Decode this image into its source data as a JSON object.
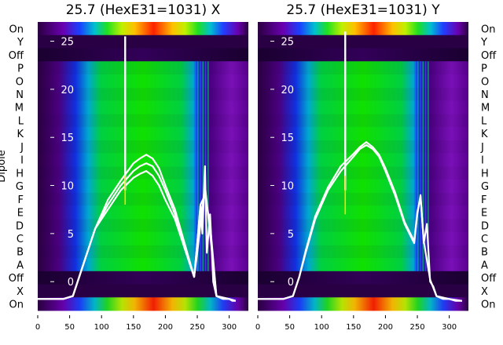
{
  "chart_data": [
    {
      "type": "heatmap",
      "title": "25.7 (HexE31=1031) X",
      "ylabel": "Dipole",
      "xlim": [
        0,
        330
      ],
      "ylim": [
        -3,
        27
      ],
      "x_ticks": [
        0,
        50,
        100,
        150,
        200,
        250,
        300
      ],
      "y_ticks": [
        0,
        5,
        10,
        15,
        20,
        25
      ],
      "row_labels": [
        "On",
        "Y",
        "Off",
        "P",
        "O",
        "N",
        "M",
        "L",
        "K",
        "J",
        "I",
        "H",
        "G",
        "F",
        "E",
        "D",
        "C",
        "B",
        "A",
        "Off",
        "X",
        "On"
      ],
      "series": [
        {
          "x": [
            0,
            20,
            40,
            55,
            65,
            75,
            90,
            110,
            130,
            150,
            160,
            170,
            180,
            190,
            200,
            215,
            230,
            245,
            250,
            255,
            258,
            262,
            265,
            270,
            275,
            280,
            290,
            300,
            305,
            310
          ],
          "y": [
            -1.8,
            -1.8,
            -1.8,
            -1.5,
            0.5,
            2.5,
            5.5,
            8,
            10,
            11.5,
            12,
            12.3,
            12,
            11,
            9.5,
            7,
            3.5,
            0.5,
            4,
            8,
            5,
            12,
            3,
            7,
            0,
            -1.5,
            -1.8,
            -1.8,
            -2,
            -2
          ]
        },
        {
          "x": [
            0,
            40,
            55,
            65,
            75,
            90,
            110,
            130,
            150,
            160,
            170,
            180,
            190,
            200,
            215,
            230,
            245,
            250,
            255,
            262,
            270,
            280,
            300,
            310
          ],
          "y": [
            -1.8,
            -1.8,
            -1.5,
            0.5,
            2.5,
            5.5,
            7.5,
            9.5,
            10.8,
            11.2,
            11.5,
            11,
            10,
            8.5,
            6.5,
            3.5,
            0.5,
            3,
            6,
            10,
            5,
            -1.5,
            -1.8,
            -2
          ]
        },
        {
          "x": [
            0,
            40,
            55,
            65,
            75,
            90,
            110,
            130,
            150,
            160,
            170,
            180,
            190,
            200,
            215,
            230,
            245,
            250,
            255,
            262,
            270,
            280,
            300,
            310
          ],
          "y": [
            -1.8,
            -1.8,
            -1.5,
            0.5,
            2.5,
            5.5,
            8.5,
            10.5,
            12.3,
            12.8,
            13.2,
            12.8,
            11.8,
            10,
            7.5,
            4,
            0.5,
            4,
            8,
            9,
            6,
            -1.5,
            -1.8,
            -2
          ]
        }
      ],
      "spike": {
        "x": 137,
        "y_from": 9.5,
        "y_to": 25.5
      },
      "annotation_line": {
        "x": 137,
        "y_from": 8,
        "y_to": 11,
        "color": "#f5e400"
      }
    },
    {
      "type": "heatmap",
      "title": "25.7 (HexE31=1031) Y",
      "xlim": [
        0,
        330
      ],
      "ylim": [
        -3,
        27
      ],
      "x_ticks": [
        0,
        50,
        100,
        150,
        200,
        250,
        300
      ],
      "y_ticks": [
        0,
        5,
        10,
        15,
        20,
        25
      ],
      "row_labels": [
        "On",
        "Y",
        "Off",
        "P",
        "O",
        "N",
        "M",
        "L",
        "K",
        "J",
        "I",
        "H",
        "G",
        "F",
        "E",
        "D",
        "C",
        "B",
        "A",
        "Off",
        "X",
        "On"
      ],
      "series": [
        {
          "x": [
            0,
            20,
            40,
            55,
            65,
            75,
            90,
            110,
            130,
            150,
            160,
            170,
            180,
            190,
            200,
            215,
            230,
            245,
            250,
            255,
            260,
            265,
            270,
            275,
            280,
            290,
            300,
            310,
            320
          ],
          "y": [
            -1.8,
            -1.8,
            -1.8,
            -1.5,
            0.5,
            3,
            6.5,
            9.5,
            11.5,
            13,
            13.8,
            14.2,
            13.8,
            13,
            11.5,
            9,
            6,
            4,
            7,
            9,
            4,
            6,
            0,
            -0.5,
            -1.5,
            -1.8,
            -1.8,
            -2,
            -2
          ]
        },
        {
          "x": [
            0,
            40,
            55,
            65,
            75,
            90,
            110,
            130,
            150,
            160,
            170,
            180,
            190,
            200,
            215,
            230,
            245,
            250,
            255,
            260,
            270,
            280,
            300,
            320
          ],
          "y": [
            -1.8,
            -1.8,
            -1.5,
            0.5,
            3.2,
            6.8,
            9.8,
            12,
            13.3,
            14,
            14.5,
            14,
            13.2,
            11.8,
            9.3,
            6.2,
            4.2,
            7.2,
            8.8,
            4.2,
            0.2,
            -1.5,
            -1.8,
            -2
          ]
        }
      ],
      "spike": {
        "x": 137,
        "y_from": 9.5,
        "y_to": 26
      },
      "annotation_line": {
        "x": 137,
        "y_from": 7,
        "y_to": 11,
        "color": "#f5e400"
      }
    }
  ]
}
